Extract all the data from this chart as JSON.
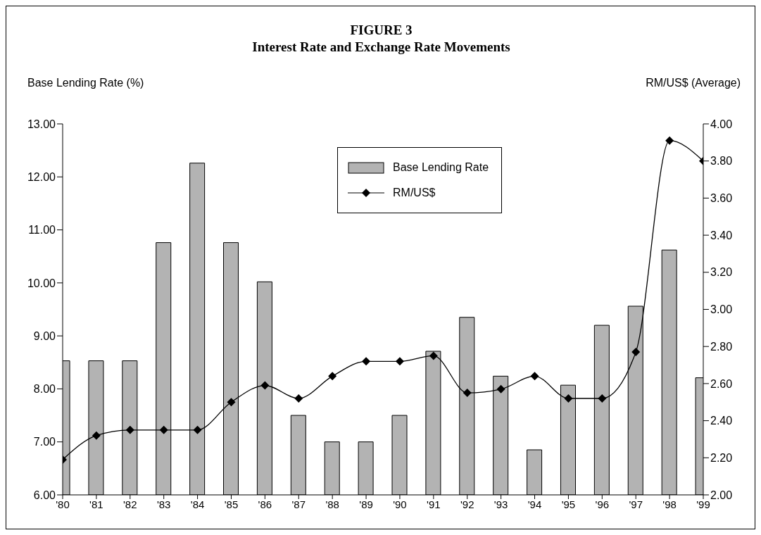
{
  "chart_data": {
    "type": "bar",
    "title": "FIGURE 3",
    "subtitle": "Interest Rate and Exchange Rate Movements",
    "ylabel": "Base Lending Rate (%)",
    "y2label": "RM/US$ (Average)",
    "categories": [
      "'80",
      "'81",
      "'82",
      "'83",
      "'84",
      "'85",
      "'86",
      "'87",
      "'88",
      "'89",
      "'90",
      "'91",
      "'92",
      "'93",
      "'94",
      "'95",
      "'96",
      "'97",
      "'98",
      "'99"
    ],
    "series": [
      {
        "name": "Base Lending Rate",
        "color": "#b3b3b3",
        "values": [
          8.53,
          8.53,
          8.53,
          10.76,
          12.26,
          10.76,
          10.02,
          7.5,
          7.0,
          7.0,
          7.5,
          8.71,
          9.35,
          8.24,
          6.85,
          8.07,
          9.2,
          9.56,
          10.62,
          8.21
        ]
      },
      {
        "name": "RM/US$",
        "type": "line",
        "axis": "y2",
        "color": "#000000",
        "marker": "diamond",
        "values": [
          2.19,
          2.32,
          2.35,
          2.35,
          2.35,
          2.5,
          2.59,
          2.52,
          2.64,
          2.72,
          2.72,
          2.75,
          2.55,
          2.57,
          2.64,
          2.52,
          2.52,
          2.77,
          3.91,
          3.8
        ]
      }
    ],
    "ylim": [
      6,
      13
    ],
    "yticks": [
      {
        "value": 6,
        "label": "6.00"
      },
      {
        "value": 7,
        "label": "7.00"
      },
      {
        "value": 8,
        "label": "8.00"
      },
      {
        "value": 9,
        "label": "9.00"
      },
      {
        "value": 10,
        "label": "10.00"
      },
      {
        "value": 11,
        "label": "11.00"
      },
      {
        "value": 12,
        "label": "12.00"
      },
      {
        "value": 13,
        "label": "13.00"
      }
    ],
    "y2lim": [
      2,
      4
    ],
    "y2ticks": [
      {
        "value": 2,
        "label": "2.00"
      },
      {
        "value": 2.2,
        "label": "2.20"
      },
      {
        "value": 2.4,
        "label": "2.40"
      },
      {
        "value": 2.6,
        "label": "2.60"
      },
      {
        "value": 2.8,
        "label": "2.80"
      },
      {
        "value": 3,
        "label": "3.00"
      },
      {
        "value": 3.2,
        "label": "3.20"
      },
      {
        "value": 3.4,
        "label": "3.40"
      },
      {
        "value": 3.6,
        "label": "3.60"
      },
      {
        "value": 3.8,
        "label": "3.80"
      },
      {
        "value": 4,
        "label": "4.00"
      }
    ],
    "grid": false,
    "legend": "top"
  }
}
